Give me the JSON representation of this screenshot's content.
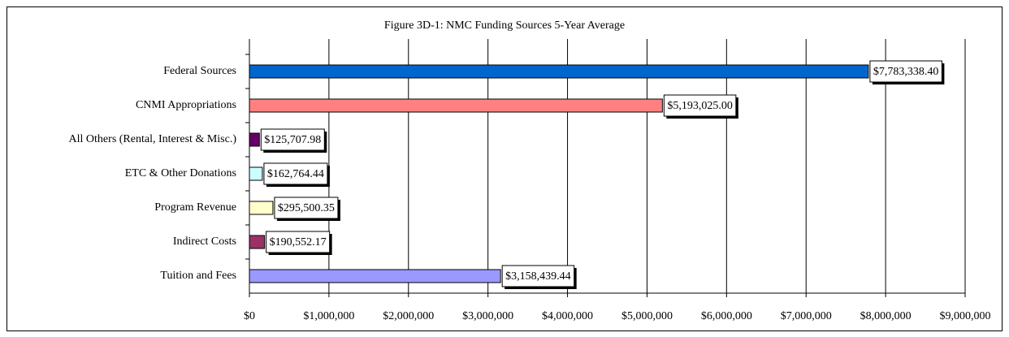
{
  "chart_data": {
    "type": "bar",
    "orientation": "horizontal",
    "title": "Figure 3D-1: NMC Funding Sources 5-Year Average",
    "categories": [
      "Federal Sources",
      "CNMI Appropriations",
      "All Others (Rental, Interest & Misc.)",
      "ETC & Other Donations",
      "Program Revenue",
      "Indirect Costs",
      "Tuition and Fees"
    ],
    "values": [
      7783338.4,
      5193025.0,
      125707.98,
      162764.44,
      295500.35,
      190552.17,
      3158439.44
    ],
    "value_labels": [
      "$7,783,338.40",
      "$5,193,025.00",
      "$125,707.98",
      "$162,764.44",
      "$295,500.35",
      "$190,552.17",
      "$3,158,439.44"
    ],
    "colors": [
      "#0066cc",
      "#ff8080",
      "#660066",
      "#ccffff",
      "#ffffcc",
      "#993366",
      "#9999ff"
    ],
    "xlim": [
      0,
      9000000
    ],
    "xticks": [
      {
        "value": 0,
        "label": "$0"
      },
      {
        "value": 1000000,
        "label": "$1,000,000"
      },
      {
        "value": 2000000,
        "label": "$2,000,000"
      },
      {
        "value": 3000000,
        "label": "$3,000,000"
      },
      {
        "value": 4000000,
        "label": "$4,000,000"
      },
      {
        "value": 5000000,
        "label": "$5,000,000"
      },
      {
        "value": 6000000,
        "label": "$6,000,000"
      },
      {
        "value": 7000000,
        "label": "$7,000,000"
      },
      {
        "value": 8000000,
        "label": "$8,000,000"
      },
      {
        "value": 9000000,
        "label": "$9,000,000"
      }
    ],
    "grid": true
  }
}
